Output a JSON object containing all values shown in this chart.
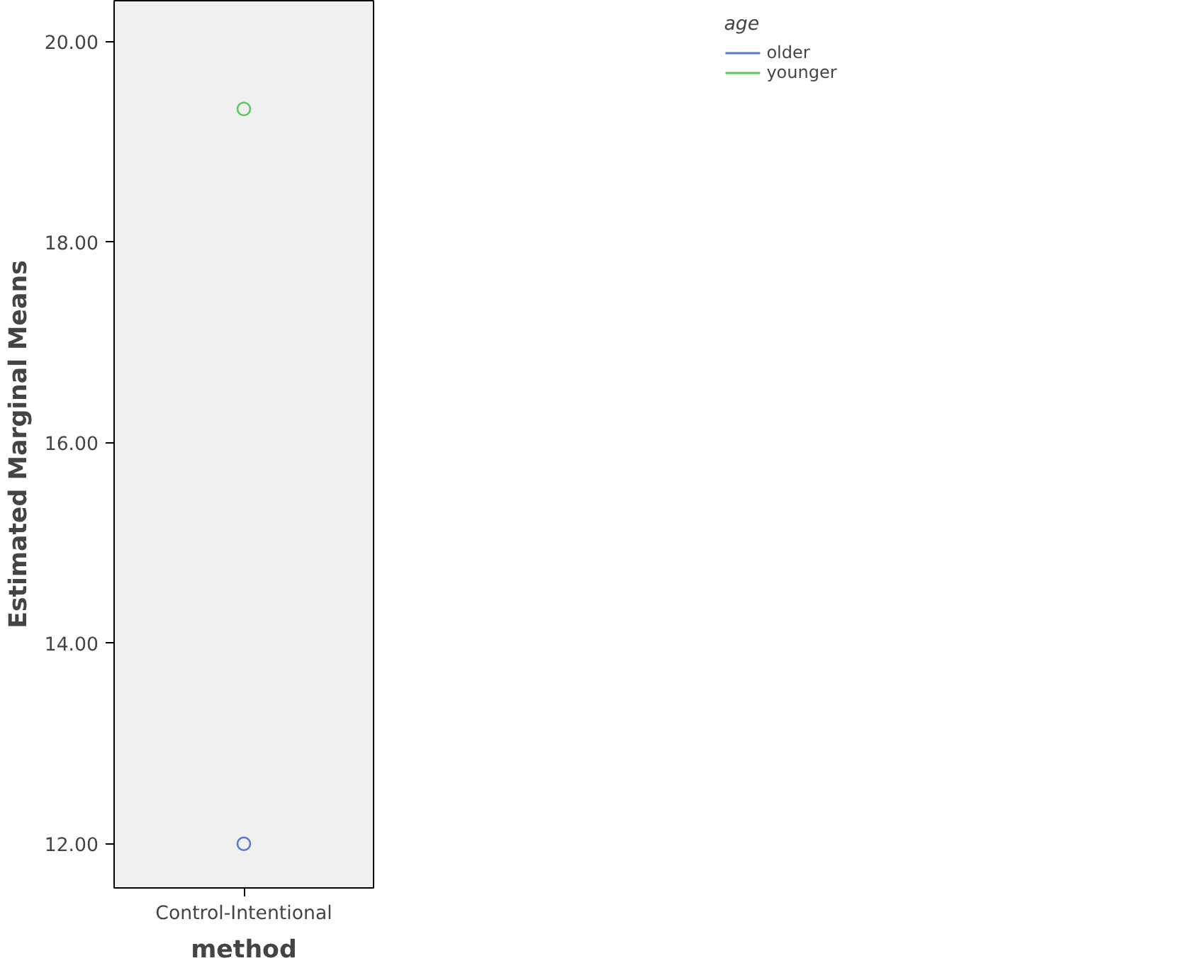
{
  "chart_data": {
    "type": "line",
    "categories": [
      "Control-Intentional"
    ],
    "xlabel": "method",
    "ylabel": "Estimated Marginal Means",
    "legend_title": "age",
    "legend": "top right",
    "marker": "circle",
    "grid": false,
    "ylim": [
      11.56,
      20.41
    ],
    "yticks": [
      {
        "value": 12,
        "label": "12.00"
      },
      {
        "value": 14,
        "label": "14.00"
      },
      {
        "value": 16,
        "label": "16.00"
      },
      {
        "value": 18,
        "label": "18.00"
      },
      {
        "value": 20,
        "label": "20.00"
      }
    ],
    "series": [
      {
        "name": "older",
        "color": "#5a78c8",
        "values": [
          12.0
        ]
      },
      {
        "name": "younger",
        "color": "#5cc85c",
        "values": [
          19.33
        ]
      }
    ]
  }
}
